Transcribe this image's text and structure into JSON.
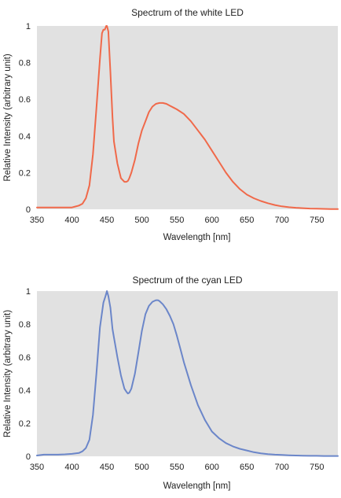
{
  "chart_data": [
    {
      "type": "line",
      "title": "Spectrum of the white LED",
      "xlabel": "Wavelength [nm]",
      "ylabel": "Relative Intensity (arbitrary unit)",
      "xlim": [
        350,
        780
      ],
      "ylim": [
        0,
        1
      ],
      "xticks": [
        350,
        400,
        450,
        500,
        550,
        600,
        650,
        700,
        750
      ],
      "yticks": [
        0,
        0.2,
        0.4,
        0.6,
        0.8,
        1
      ],
      "ytick_labels": [
        "0",
        "0.2",
        "0.4",
        "0.6",
        "0.8",
        "1"
      ],
      "grid": false,
      "color": "#f0694a",
      "series": [
        {
          "x": [
            350,
            360,
            370,
            380,
            390,
            400,
            405,
            410,
            415,
            420,
            425,
            430,
            435,
            440,
            443,
            445,
            447,
            449,
            450,
            452,
            455,
            458,
            460,
            465,
            470,
            475,
            478,
            480,
            482,
            485,
            490,
            495,
            500,
            505,
            510,
            515,
            520,
            525,
            530,
            535,
            540,
            545,
            550,
            560,
            570,
            580,
            590,
            600,
            610,
            620,
            630,
            640,
            650,
            660,
            670,
            680,
            690,
            700,
            710,
            720,
            730,
            740,
            750,
            760,
            770,
            780
          ],
          "y": [
            0.01,
            0.01,
            0.01,
            0.01,
            0.01,
            0.01,
            0.015,
            0.02,
            0.03,
            0.06,
            0.13,
            0.3,
            0.55,
            0.82,
            0.96,
            0.98,
            0.98,
            1.0,
            1.0,
            0.97,
            0.75,
            0.5,
            0.37,
            0.25,
            0.17,
            0.15,
            0.15,
            0.155,
            0.17,
            0.2,
            0.27,
            0.36,
            0.43,
            0.48,
            0.53,
            0.56,
            0.575,
            0.58,
            0.58,
            0.575,
            0.565,
            0.555,
            0.545,
            0.52,
            0.48,
            0.43,
            0.38,
            0.32,
            0.26,
            0.2,
            0.15,
            0.11,
            0.08,
            0.06,
            0.045,
            0.033,
            0.023,
            0.016,
            0.011,
            0.008,
            0.006,
            0.004,
            0.003,
            0.002,
            0.001,
            0.001
          ]
        }
      ]
    },
    {
      "type": "line",
      "title": "Spectrum of the cyan LED",
      "xlabel": "Wavelength [nm]",
      "ylabel": "Relative Intensity (arbitrary unit)",
      "xlim": [
        350,
        780
      ],
      "ylim": [
        0,
        1
      ],
      "xticks": [
        350,
        400,
        450,
        500,
        550,
        600,
        650,
        700,
        750
      ],
      "yticks": [
        0,
        0.2,
        0.4,
        0.6,
        0.8,
        1
      ],
      "ytick_labels": [
        "0",
        "0.2",
        "0.4",
        "0.6",
        "0.8",
        "1"
      ],
      "grid": false,
      "color": "#6b86c9",
      "series": [
        {
          "x": [
            350,
            360,
            370,
            380,
            390,
            400,
            410,
            415,
            420,
            425,
            430,
            435,
            440,
            445,
            448,
            450,
            452,
            455,
            458,
            460,
            465,
            470,
            475,
            478,
            480,
            482,
            485,
            490,
            495,
            500,
            505,
            510,
            515,
            520,
            523,
            525,
            530,
            535,
            540,
            545,
            550,
            555,
            560,
            570,
            580,
            590,
            600,
            610,
            620,
            630,
            640,
            650,
            660,
            670,
            680,
            690,
            700,
            710,
            720,
            730,
            740,
            750,
            760,
            770,
            780
          ],
          "y": [
            0.005,
            0.01,
            0.01,
            0.01,
            0.012,
            0.015,
            0.02,
            0.03,
            0.05,
            0.1,
            0.25,
            0.5,
            0.78,
            0.93,
            0.97,
            1.0,
            0.97,
            0.9,
            0.77,
            0.72,
            0.6,
            0.49,
            0.41,
            0.39,
            0.38,
            0.385,
            0.41,
            0.5,
            0.63,
            0.76,
            0.86,
            0.91,
            0.935,
            0.945,
            0.945,
            0.94,
            0.92,
            0.89,
            0.85,
            0.8,
            0.73,
            0.65,
            0.57,
            0.43,
            0.31,
            0.22,
            0.15,
            0.11,
            0.08,
            0.06,
            0.045,
            0.035,
            0.025,
            0.018,
            0.013,
            0.01,
            0.008,
            0.006,
            0.005,
            0.004,
            0.003,
            0.003,
            0.002,
            0.002,
            0.002
          ]
        }
      ]
    }
  ]
}
